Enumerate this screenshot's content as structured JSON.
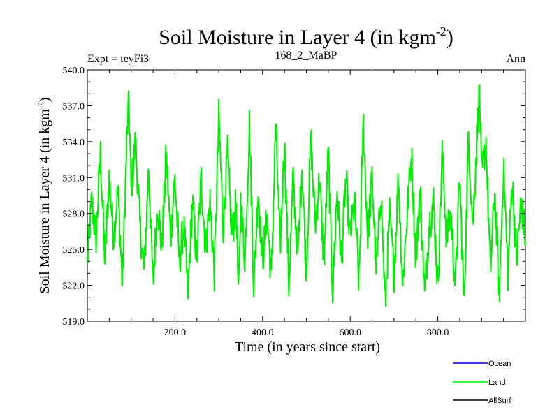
{
  "chart_data": {
    "type": "line",
    "title": "Soil Moisture in Layer 4 (in kgm",
    "title_sup": "-2",
    "title_close": ")",
    "subtitle_left": "Expt = teyFi3",
    "subtitle_center": "168_2_MaBP",
    "subtitle_right": "Ann",
    "xlabel": "Time (in years since start)",
    "ylabel": "Soil Moisture in Layer 4 (in kgm",
    "ylabel_sup": "-2",
    "ylabel_close": ")",
    "xlim": [
      0,
      1000
    ],
    "ylim": [
      519.0,
      540.0
    ],
    "xticks": [
      200,
      400,
      600,
      800
    ],
    "xtick_labels": [
      "200.0",
      "400.0",
      "600.0",
      "800.0"
    ],
    "yticks": [
      519,
      522,
      525,
      528,
      531,
      534,
      537,
      540
    ],
    "ytick_labels": [
      "519.0",
      "522.0",
      "525.0",
      "528.0",
      "531.0",
      "534.0",
      "537.0",
      "540.0"
    ],
    "legend": [
      {
        "name": "Ocean",
        "color": "#0000ff"
      },
      {
        "name": "Land",
        "color": "#00ee00"
      },
      {
        "name": "AllSurf",
        "color": "#000000"
      }
    ],
    "series": [
      {
        "name": "Land",
        "color": "#00ee00",
        "keypoints": [
          [
            0,
            524.0
          ],
          [
            10,
            529.0
          ],
          [
            20,
            526.0
          ],
          [
            30,
            533.0
          ],
          [
            40,
            524.0
          ],
          [
            50,
            531.0
          ],
          [
            60,
            526.0
          ],
          [
            70,
            530.0
          ],
          [
            80,
            522.0
          ],
          [
            90,
            534.0
          ],
          [
            95,
            537.3
          ],
          [
            100,
            530.0
          ],
          [
            110,
            534.0
          ],
          [
            120,
            527.0
          ],
          [
            130,
            523.0
          ],
          [
            140,
            532.0
          ],
          [
            150,
            522.0
          ],
          [
            160,
            529.0
          ],
          [
            170,
            525.0
          ],
          [
            180,
            533.0
          ],
          [
            190,
            526.0
          ],
          [
            200,
            531.0
          ],
          [
            210,
            524.0
          ],
          [
            220,
            527.0
          ],
          [
            230,
            521.5
          ],
          [
            240,
            529.0
          ],
          [
            250,
            524.0
          ],
          [
            260,
            531.0
          ],
          [
            270,
            525.0
          ],
          [
            280,
            529.0
          ],
          [
            290,
            523.0
          ],
          [
            300,
            536.0
          ],
          [
            310,
            527.0
          ],
          [
            320,
            533.0
          ],
          [
            330,
            526.0
          ],
          [
            340,
            529.0
          ],
          [
            345,
            520.6
          ],
          [
            350,
            529.0
          ],
          [
            360,
            524.0
          ],
          [
            370,
            535.5
          ],
          [
            380,
            522.0
          ],
          [
            390,
            530.0
          ],
          [
            400,
            524.0
          ],
          [
            410,
            528.0
          ],
          [
            420,
            522.5
          ],
          [
            430,
            535.5
          ],
          [
            440,
            525.0
          ],
          [
            450,
            534.0
          ],
          [
            460,
            522.0
          ],
          [
            470,
            531.0
          ],
          [
            480,
            524.0
          ],
          [
            490,
            532.0
          ],
          [
            500,
            523.0
          ],
          [
            510,
            534.5
          ],
          [
            520,
            527.0
          ],
          [
            530,
            531.0
          ],
          [
            540,
            524.0
          ],
          [
            550,
            533.0
          ],
          [
            560,
            521.5
          ],
          [
            570,
            530.0
          ],
          [
            580,
            524.0
          ],
          [
            590,
            531.0
          ],
          [
            600,
            526.0
          ],
          [
            610,
            529.0
          ],
          [
            620,
            522.0
          ],
          [
            630,
            535.5
          ],
          [
            640,
            526.0
          ],
          [
            650,
            531.0
          ],
          [
            660,
            523.0
          ],
          [
            670,
            530.0
          ],
          [
            680,
            520.4
          ],
          [
            690,
            528.0
          ],
          [
            700,
            523.0
          ],
          [
            710,
            531.0
          ],
          [
            720,
            522.0
          ],
          [
            730,
            528.0
          ],
          [
            740,
            533.0
          ],
          [
            750,
            524.0
          ],
          [
            760,
            530.0
          ],
          [
            770,
            521.0
          ],
          [
            780,
            527.0
          ],
          [
            790,
            529.0
          ],
          [
            800,
            522.0
          ],
          [
            810,
            533.0
          ],
          [
            820,
            526.0
          ],
          [
            830,
            528.0
          ],
          [
            840,
            522.0
          ],
          [
            850,
            531.0
          ],
          [
            860,
            520.4
          ],
          [
            870,
            534.5
          ],
          [
            880,
            527.0
          ],
          [
            890,
            535.0
          ],
          [
            895,
            538.5
          ],
          [
            900,
            531.0
          ],
          [
            910,
            534.0
          ],
          [
            920,
            523.0
          ],
          [
            930,
            530.0
          ],
          [
            940,
            520.8
          ],
          [
            950,
            532.0
          ],
          [
            960,
            523.0
          ],
          [
            970,
            531.0
          ],
          [
            980,
            524.0
          ],
          [
            990,
            529.0
          ],
          [
            1000,
            526.0
          ]
        ]
      }
    ]
  }
}
